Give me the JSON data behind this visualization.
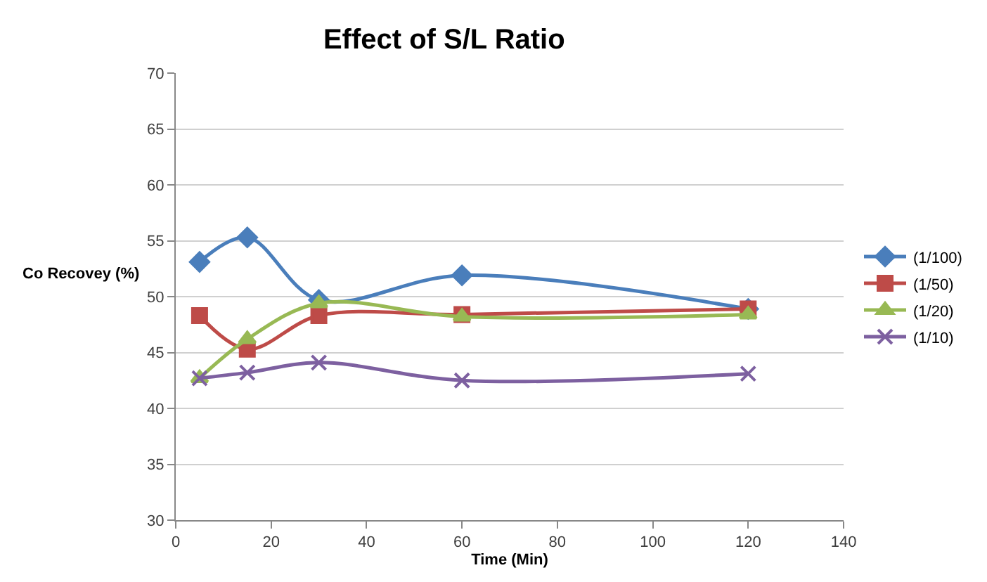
{
  "chart_data": {
    "type": "line",
    "title": "Effect of S/L Ratio",
    "xlabel": "Time (Min)",
    "ylabel": "Co Recovey (%)",
    "x": [
      5,
      15,
      30,
      60,
      120
    ],
    "series": [
      {
        "name": "(1/100)",
        "color": "#4a7ebb",
        "marker": "diamond",
        "values": [
          53.1,
          55.3,
          49.7,
          51.9,
          48.9
        ]
      },
      {
        "name": "(1/50)",
        "color": "#be4b48",
        "marker": "square",
        "values": [
          48.3,
          45.3,
          48.3,
          48.4,
          48.9
        ]
      },
      {
        "name": "(1/20)",
        "color": "#98b954",
        "marker": "triangle",
        "values": [
          42.7,
          46.2,
          49.4,
          48.2,
          48.4
        ]
      },
      {
        "name": "(1/10)",
        "color": "#7d60a0",
        "marker": "cross",
        "values": [
          42.7,
          43.2,
          44.1,
          42.5,
          43.1
        ]
      }
    ],
    "xlim": [
      0,
      140
    ],
    "xticks": [
      0,
      20,
      40,
      60,
      80,
      100,
      120,
      140
    ],
    "ylim": [
      30,
      70
    ],
    "yticks": [
      30,
      35,
      40,
      45,
      50,
      55,
      60,
      65,
      70
    ],
    "grid": "y",
    "legend": "right"
  }
}
